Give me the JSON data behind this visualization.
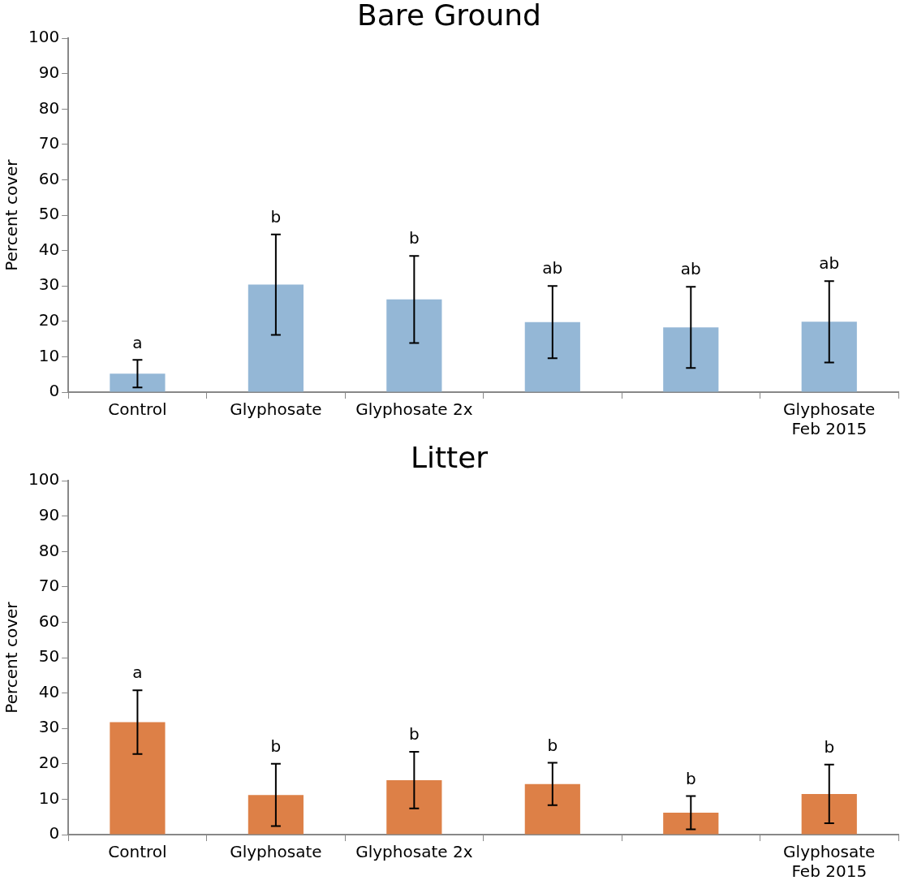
{
  "chart_data": [
    {
      "type": "bar",
      "title": "Bare Ground",
      "ylabel": "Percent cover",
      "categories": [
        "Control",
        "Glyphosate",
        "Glyphosate 2x",
        null,
        null,
        "Glyphosate Feb 2015"
      ],
      "series": [
        {
          "color": "#94b7d6",
          "values": [
            5.2,
            30.4,
            26.2,
            19.8,
            18.3,
            19.9
          ],
          "errors": [
            3.9,
            14.2,
            12.3,
            10.2,
            11.5,
            11.5
          ]
        }
      ],
      "ylim": [
        0,
        100
      ],
      "yticks": [
        0,
        10,
        20,
        30,
        40,
        50,
        60,
        70,
        80,
        90,
        100
      ],
      "grid": false,
      "legend": false,
      "annotations": [
        "a",
        "b",
        "b",
        "ab",
        "ab",
        "ab"
      ]
    },
    {
      "type": "bar",
      "title": "Litter",
      "ylabel": "Percent cover",
      "categories": [
        "Control",
        "Glyphosate",
        "Glyphosate 2x",
        null,
        null,
        "Glyphosate Feb 2015"
      ],
      "series": [
        {
          "color": "#dd8047",
          "values": [
            31.8,
            11.2,
            15.4,
            14.3,
            6.2,
            11.5
          ],
          "errors": [
            9,
            8.8,
            8,
            6,
            4.7,
            8.3
          ]
        }
      ],
      "ylim": [
        0,
        100
      ],
      "yticks": [
        0,
        10,
        20,
        30,
        40,
        50,
        60,
        70,
        80,
        90,
        100
      ],
      "grid": false,
      "legend": false,
      "annotations": [
        "a",
        "b",
        "b",
        "b",
        "b",
        "b"
      ]
    }
  ]
}
